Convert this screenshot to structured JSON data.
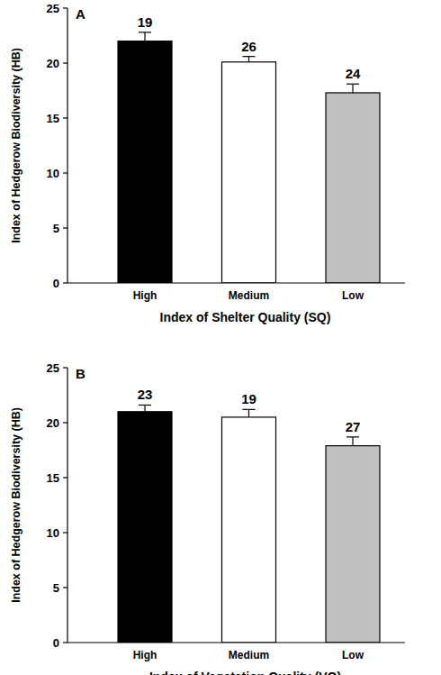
{
  "chart_data": [
    {
      "type": "bar",
      "title": "A",
      "x_label": "Index of Shelter Quality (SQ)",
      "y_label": "Index of Hedgerow Biodiversity (HB)",
      "categories": [
        "High",
        "Medium",
        "Low"
      ],
      "values": [
        22.0,
        20.1,
        17.3
      ],
      "errors": [
        0.8,
        0.5,
        0.8
      ],
      "sample_sizes": [
        19,
        26,
        24
      ],
      "colors": [
        "#000000",
        "#ffffff",
        "#c0c0c0"
      ],
      "ylim": [
        0,
        25
      ],
      "yticks": [
        0,
        5,
        10,
        15,
        20,
        25
      ]
    },
    {
      "type": "bar",
      "title": "B",
      "x_label": "Index of Vegetation Quality (VQ)",
      "y_label": "Index of Hedgerow Biodiversity (HB)",
      "categories": [
        "High",
        "Medium",
        "Low"
      ],
      "values": [
        21.0,
        20.5,
        17.9
      ],
      "errors": [
        0.6,
        0.7,
        0.8
      ],
      "sample_sizes": [
        23,
        19,
        27
      ],
      "colors": [
        "#000000",
        "#ffffff",
        "#c0c0c0"
      ],
      "ylim": [
        0,
        25
      ],
      "yticks": [
        0,
        5,
        10,
        15,
        20,
        25
      ]
    }
  ]
}
